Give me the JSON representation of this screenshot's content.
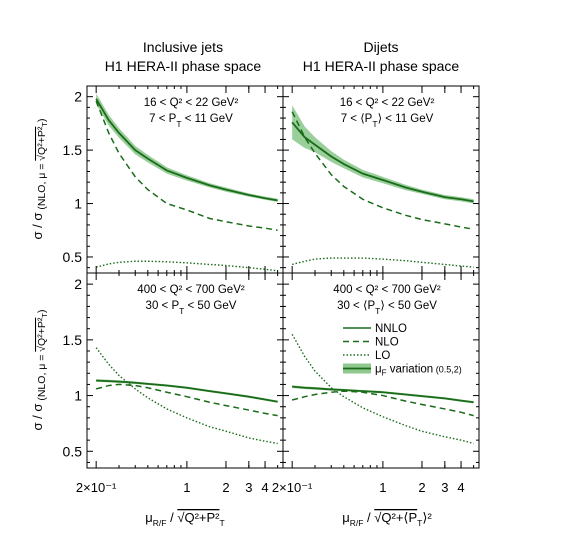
{
  "chart_data": {
    "type": "line",
    "column_titles": [
      [
        "Inclusive jets",
        "H1 HERA-II phase space"
      ],
      [
        "Dijets",
        "H1 HERA-II phase space"
      ]
    ],
    "ylabel": {
      "main": "σ / σ",
      "sub": "(NLO, μ = ",
      "root": "Q²+P²",
      "root_sub": "T",
      "close": ")"
    },
    "xlabels": [
      {
        "mu": "μ",
        "mu_sub": "R/F",
        "slash": " / ",
        "root": "Q²+P²",
        "root_sub": "T"
      },
      {
        "mu": "μ",
        "mu_sub": "R/F",
        "slash": " / ",
        "root": "Q²+⟨P",
        "root_sub": "T",
        "root_tail": "⟩²"
      }
    ],
    "x_scale": "log",
    "xlim": [
      0.17,
      5.5
    ],
    "x_ticks": [
      {
        "value": 0.2,
        "label": "2×10⁻¹"
      },
      {
        "value": 1,
        "label": "1"
      },
      {
        "value": 2,
        "label": "2"
      },
      {
        "value": 3,
        "label": "3"
      },
      {
        "value": 4,
        "label": "4"
      }
    ],
    "legend": {
      "placement": "bottom-right panel",
      "entries": [
        {
          "style": "solid",
          "label": "NNLO"
        },
        {
          "style": "dashed",
          "label": "NLO"
        },
        {
          "style": "dotted",
          "label": "LO"
        },
        {
          "style": "band",
          "label": "μ",
          "label_sub": "F",
          "label_tail": " variation",
          "label_small": " (0.5,2)"
        }
      ]
    },
    "colors": {
      "line": "#1a6b1a",
      "band": "#8fc98f"
    },
    "panels": [
      {
        "row": 0,
        "col": 0,
        "ylim": [
          0.35,
          2.1
        ],
        "y_ticks": [
          0.5,
          1,
          1.5,
          2
        ],
        "y_tick_labels": [
          "0.5",
          "1",
          "1.5",
          "2"
        ],
        "annotation": [
          "16 < Q² < 22 GeV²",
          "7 < P_T < 11 GeV"
        ],
        "series": [
          {
            "style": "solid",
            "x": [
              0.2,
              0.25,
              0.3,
              0.4,
              0.5,
              0.7,
              1.0,
              1.5,
              2.0,
              3.0,
              4.0,
              5.0
            ],
            "y": [
              1.98,
              1.78,
              1.66,
              1.5,
              1.42,
              1.31,
              1.24,
              1.17,
              1.13,
              1.08,
              1.05,
              1.03
            ],
            "band": [
              0.05,
              0.05,
              0.045,
              0.04,
              0.035,
              0.03,
              0.025,
              0.02,
              0.02,
              0.015,
              0.015,
              0.015
            ]
          },
          {
            "style": "dashed",
            "x": [
              0.2,
              0.25,
              0.3,
              0.4,
              0.5,
              0.7,
              1.0,
              1.5,
              2.0,
              3.0,
              4.0,
              5.0
            ],
            "y": [
              1.96,
              1.66,
              1.47,
              1.25,
              1.13,
              1.0,
              0.94,
              0.86,
              0.83,
              0.79,
              0.77,
              0.75
            ]
          },
          {
            "style": "dotted",
            "x": [
              0.2,
              0.25,
              0.3,
              0.4,
              0.5,
              0.7,
              1.0,
              1.5,
              2.0,
              3.0,
              4.0,
              5.0
            ],
            "y": [
              0.405,
              0.435,
              0.45,
              0.46,
              0.46,
              0.455,
              0.445,
              0.43,
              0.42,
              0.4,
              0.385,
              0.37
            ]
          }
        ]
      },
      {
        "row": 0,
        "col": 1,
        "ylim": [
          0.35,
          2.1
        ],
        "y_ticks": [
          0.5,
          1,
          1.5,
          2
        ],
        "y_tick_labels": [
          "0.5",
          "1",
          "1.5",
          "2"
        ],
        "annotation": [
          "16 < Q² < 22 GeV²",
          "7 < ⟨P_T⟩ < 11 GeV"
        ],
        "series": [
          {
            "style": "solid",
            "x": [
              0.2,
              0.25,
              0.3,
              0.4,
              0.5,
              0.7,
              1.0,
              1.5,
              2.0,
              3.0,
              4.0,
              5.0
            ],
            "y": [
              1.76,
              1.62,
              1.55,
              1.44,
              1.37,
              1.28,
              1.22,
              1.15,
              1.11,
              1.06,
              1.04,
              1.02
            ],
            "band": [
              0.16,
              0.1,
              0.07,
              0.05,
              0.04,
              0.035,
              0.03,
              0.025,
              0.02,
              0.02,
              0.02,
              0.02
            ]
          },
          {
            "style": "dashed",
            "x": [
              0.2,
              0.25,
              0.3,
              0.4,
              0.5,
              0.7,
              1.0,
              1.5,
              2.0,
              3.0,
              4.0,
              5.0
            ],
            "y": [
              1.86,
              1.62,
              1.47,
              1.27,
              1.16,
              1.04,
              0.96,
              0.89,
              0.85,
              0.81,
              0.78,
              0.76
            ]
          },
          {
            "style": "dotted",
            "x": [
              0.2,
              0.25,
              0.3,
              0.4,
              0.5,
              0.7,
              1.0,
              1.5,
              2.0,
              3.0,
              4.0,
              5.0
            ],
            "y": [
              0.43,
              0.46,
              0.48,
              0.49,
              0.49,
              0.49,
              0.48,
              0.465,
              0.45,
              0.43,
              0.415,
              0.405
            ]
          }
        ]
      },
      {
        "row": 1,
        "col": 0,
        "ylim": [
          0.35,
          2.1
        ],
        "y_ticks": [
          0.5,
          1,
          1.5,
          2
        ],
        "y_tick_labels": [
          "0.5",
          "1",
          "1.5",
          "2"
        ],
        "annotation": [
          "400 < Q² < 700 GeV²",
          "30 < P_T < 50 GeV"
        ],
        "series": [
          {
            "style": "solid",
            "x": [
              0.2,
              0.25,
              0.3,
              0.4,
              0.5,
              0.7,
              1.0,
              1.5,
              2.0,
              3.0,
              4.0,
              5.0
            ],
            "y": [
              1.135,
              1.13,
              1.125,
              1.115,
              1.105,
              1.09,
              1.07,
              1.04,
              1.02,
              0.99,
              0.965,
              0.945
            ],
            "band": [
              0.012,
              0.012,
              0.012,
              0.011,
              0.01,
              0.01,
              0.01,
              0.01,
              0.01,
              0.01,
              0.01,
              0.01
            ]
          },
          {
            "style": "dashed",
            "x": [
              0.2,
              0.25,
              0.3,
              0.4,
              0.5,
              0.7,
              1.0,
              1.5,
              2.0,
              3.0,
              4.0,
              5.0
            ],
            "y": [
              1.06,
              1.09,
              1.1,
              1.09,
              1.07,
              1.03,
              0.99,
              0.94,
              0.91,
              0.87,
              0.84,
              0.82
            ]
          },
          {
            "style": "dotted",
            "x": [
              0.2,
              0.25,
              0.3,
              0.4,
              0.5,
              0.7,
              1.0,
              1.5,
              2.0,
              3.0,
              4.0,
              5.0
            ],
            "y": [
              1.43,
              1.28,
              1.18,
              1.06,
              0.98,
              0.88,
              0.8,
              0.72,
              0.68,
              0.62,
              0.59,
              0.57
            ]
          }
        ]
      },
      {
        "row": 1,
        "col": 1,
        "ylim": [
          0.35,
          2.1
        ],
        "y_ticks": [
          0.5,
          1,
          1.5,
          2
        ],
        "y_tick_labels": [
          "0.5",
          "1",
          "1.5",
          "2"
        ],
        "annotation": [
          "400 < Q² < 700 GeV²",
          "30 < ⟨P_T⟩ < 50 GeV"
        ],
        "series": [
          {
            "style": "solid",
            "x": [
              0.2,
              0.25,
              0.3,
              0.4,
              0.5,
              0.7,
              1.0,
              1.5,
              2.0,
              3.0,
              4.0,
              5.0
            ],
            "y": [
              1.08,
              1.07,
              1.065,
              1.055,
              1.05,
              1.04,
              1.03,
              1.01,
              0.995,
              0.975,
              0.955,
              0.94
            ],
            "band": [
              0.012,
              0.012,
              0.012,
              0.011,
              0.01,
              0.01,
              0.01,
              0.01,
              0.01,
              0.01,
              0.01,
              0.01
            ]
          },
          {
            "style": "dashed",
            "x": [
              0.2,
              0.25,
              0.3,
              0.4,
              0.5,
              0.7,
              1.0,
              1.5,
              2.0,
              3.0,
              4.0,
              5.0
            ],
            "y": [
              0.96,
              0.99,
              1.01,
              1.03,
              1.04,
              1.03,
              1.0,
              0.95,
              0.92,
              0.88,
              0.85,
              0.82
            ]
          },
          {
            "style": "dotted",
            "x": [
              0.2,
              0.25,
              0.3,
              0.4,
              0.5,
              0.7,
              1.0,
              1.5,
              2.0,
              3.0,
              4.0,
              5.0
            ],
            "y": [
              1.55,
              1.35,
              1.22,
              1.07,
              0.99,
              0.89,
              0.81,
              0.73,
              0.68,
              0.63,
              0.6,
              0.57
            ]
          }
        ]
      }
    ]
  }
}
